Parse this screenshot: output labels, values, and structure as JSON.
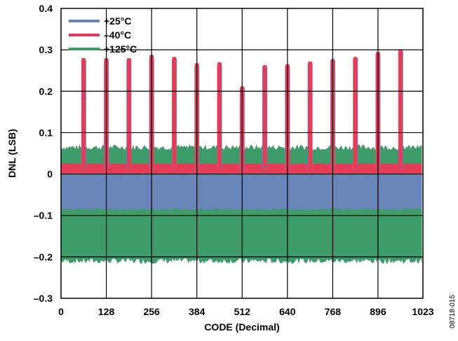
{
  "chart_data": {
    "type": "area",
    "xlabel": "CODE (Decimal)",
    "ylabel": "DNL (LSB)",
    "xlim": [
      0,
      1023
    ],
    "ylim": [
      -0.3,
      0.4
    ],
    "x_ticks": [
      "0",
      "128",
      "256",
      "384",
      "512",
      "640",
      "768",
      "896",
      "1023"
    ],
    "y_ticks": [
      "0.4",
      "0.3",
      "0.2",
      "0.1",
      "0",
      "–0.1",
      "–0.2",
      "–0.3"
    ],
    "grid": true,
    "legend_position": "top-left",
    "series": [
      {
        "name": "+25°C",
        "color": "#6a86b8",
        "band": [
          -0.085,
          0.0
        ],
        "spikes": [
          {
            "x": 64,
            "y": 0.275
          },
          {
            "x": 128,
            "y": 0.275
          },
          {
            "x": 192,
            "y": 0.275
          },
          {
            "x": 256,
            "y": 0.28
          },
          {
            "x": 320,
            "y": 0.28
          },
          {
            "x": 384,
            "y": 0.262
          },
          {
            "x": 448,
            "y": 0.265
          },
          {
            "x": 512,
            "y": 0.21
          },
          {
            "x": 576,
            "y": 0.26
          },
          {
            "x": 640,
            "y": 0.26
          },
          {
            "x": 704,
            "y": 0.268
          },
          {
            "x": 768,
            "y": 0.275
          },
          {
            "x": 832,
            "y": 0.28
          },
          {
            "x": 896,
            "y": 0.29
          },
          {
            "x": 960,
            "y": 0.298
          }
        ]
      },
      {
        "name": "–40°C",
        "color": "#e63c5a",
        "band": [
          -0.02,
          0.025
        ],
        "spikes": [
          {
            "x": 64,
            "y": 0.28
          },
          {
            "x": 128,
            "y": 0.28
          },
          {
            "x": 192,
            "y": 0.28
          },
          {
            "x": 256,
            "y": 0.288
          },
          {
            "x": 320,
            "y": 0.283
          },
          {
            "x": 384,
            "y": 0.268
          },
          {
            "x": 448,
            "y": 0.27
          },
          {
            "x": 512,
            "y": 0.212
          },
          {
            "x": 576,
            "y": 0.263
          },
          {
            "x": 640,
            "y": 0.265
          },
          {
            "x": 704,
            "y": 0.272
          },
          {
            "x": 768,
            "y": 0.278
          },
          {
            "x": 832,
            "y": 0.283
          },
          {
            "x": 896,
            "y": 0.295
          },
          {
            "x": 960,
            "y": 0.3
          }
        ]
      },
      {
        "name": "+125°C",
        "color": "#3e9b6a",
        "band": [
          -0.21,
          0.065
        ],
        "spikes": []
      }
    ],
    "figure_id": "08718-015"
  }
}
